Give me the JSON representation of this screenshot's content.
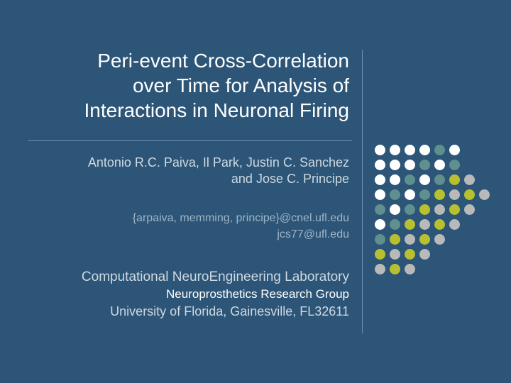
{
  "colors": {
    "background": "#2c5577",
    "title_text": "#ffffff",
    "subtitle_text": "#cfd9e2",
    "muted_text": "#9fb4c6",
    "line": "#6f92ac",
    "dot_white": "#ffffff",
    "dot_teal": "#5f8f8f",
    "dot_olive": "#b8c030",
    "dot_grey": "#b9b9b9"
  },
  "title": {
    "line1": "Peri-event Cross-Correlation",
    "line2": "over Time for Analysis of",
    "line3": "Interactions in Neuronal Firing",
    "fontsize": 28
  },
  "authors": {
    "line1": "Antonio R.C. Paiva, Il Park, Justin C. Sanchez",
    "line2": "and Jose C. Principe",
    "fontsize": 18
  },
  "emails": {
    "line1": "{arpaiva, memming, principe}@cnel.ufl.edu",
    "line2": "jcs77@ufl.edu",
    "fontsize": 16
  },
  "affiliation": {
    "lab": "Computational NeuroEngineering Laboratory",
    "group": "Neuroprosthetics Research Group",
    "university": "University of Florida, Gainesville, FL32611"
  },
  "dot_grid": {
    "dot_size": 15,
    "gap": 6,
    "rows": [
      [
        "white",
        "white",
        "white",
        "white",
        "teal",
        "white",
        "",
        ""
      ],
      [
        "white",
        "white",
        "white",
        "teal",
        "white",
        "teal",
        "",
        ""
      ],
      [
        "white",
        "white",
        "teal",
        "white",
        "teal",
        "olive",
        "grey",
        ""
      ],
      [
        "white",
        "teal",
        "white",
        "teal",
        "olive",
        "grey",
        "olive",
        "grey"
      ],
      [
        "teal",
        "white",
        "teal",
        "olive",
        "grey",
        "olive",
        "grey",
        ""
      ],
      [
        "white",
        "teal",
        "olive",
        "grey",
        "olive",
        "grey",
        "",
        ""
      ],
      [
        "teal",
        "olive",
        "grey",
        "olive",
        "grey",
        "",
        "",
        ""
      ],
      [
        "olive",
        "grey",
        "olive",
        "grey",
        "",
        "",
        "",
        ""
      ],
      [
        "grey",
        "olive",
        "grey",
        "",
        "",
        "",
        "",
        ""
      ]
    ],
    "offsets": [
      0,
      0,
      0,
      0,
      0,
      0,
      0,
      0,
      0
    ]
  }
}
